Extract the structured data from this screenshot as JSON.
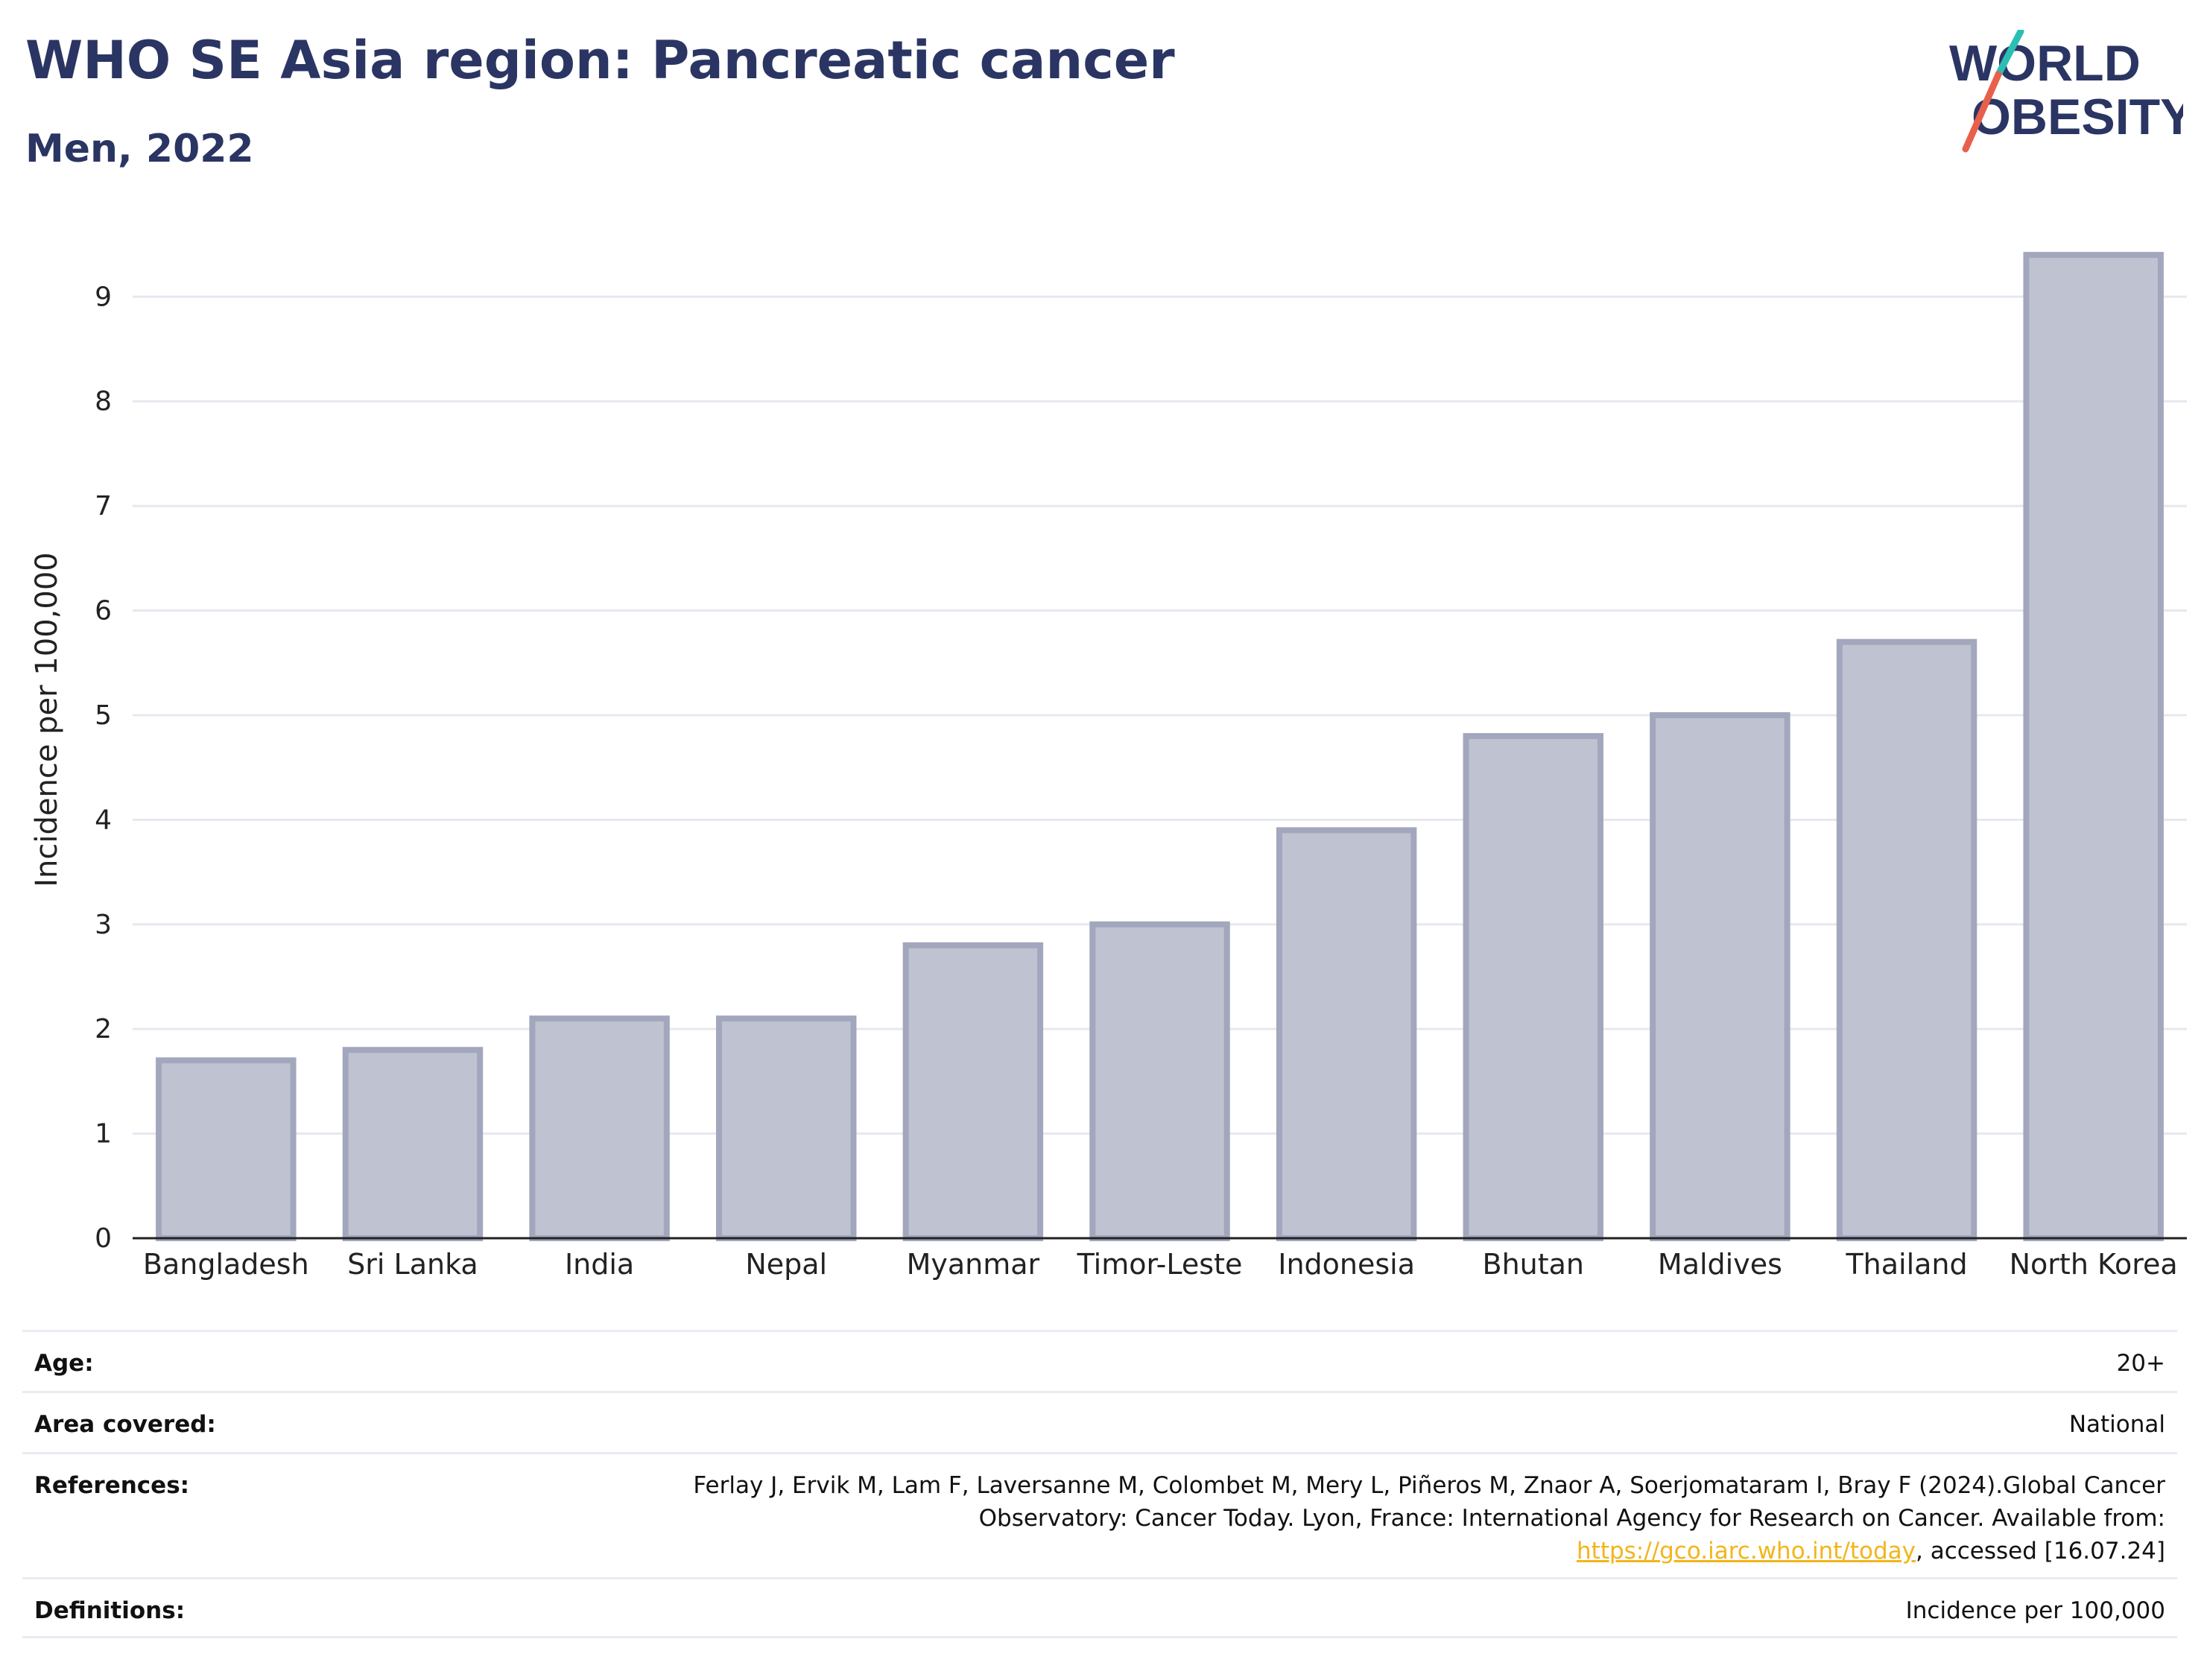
{
  "header": {
    "title": "WHO SE Asia region: Pancreatic cancer",
    "subtitle": "Men, 2022"
  },
  "logo": {
    "line1": "WORLD",
    "line2": "OBESITY",
    "icon": "world-obesity-logo",
    "colors": {
      "text": "#2b3563",
      "slash_teal": "#2bbfb3",
      "slash_red": "#e8604c"
    }
  },
  "chart_data": {
    "type": "bar",
    "categories": [
      "Bangladesh",
      "Sri Lanka",
      "India",
      "Nepal",
      "Myanmar",
      "Timor-Leste",
      "Indonesia",
      "Bhutan",
      "Maldives",
      "Thailand",
      "North Korea"
    ],
    "values": [
      1.7,
      1.8,
      2.1,
      2.1,
      2.8,
      3.0,
      3.9,
      4.8,
      5.0,
      5.7,
      9.4
    ],
    "ylabel": "Incidence per 100,000",
    "xlabel": "",
    "ylim": [
      0,
      9.7
    ],
    "yticks": [
      0,
      1,
      2,
      3,
      4,
      5,
      6,
      7,
      8,
      9
    ],
    "grid": true,
    "colors": {
      "bar_fill": "#bfc2d0",
      "bar_stroke": "#a2a7bd",
      "grid": "#e6e8ef",
      "axis": "#222222"
    }
  },
  "meta": [
    {
      "label": "Age:",
      "value": "20+"
    },
    {
      "label": "Area covered:",
      "value": "National"
    },
    {
      "label": "References:",
      "value_pre": "Ferlay J, Ervik M, Lam F, Laversanne M, Colombet M, Mery L, Piñeros M, Znaor A, Soerjomataram I, Bray F (2024).Global Cancer Observatory: Cancer Today. Lyon, France: International Agency for Research on Cancer. Available from: ",
      "link": "https://gco.iarc.who.int/today",
      "value_post": ", accessed [16.07.24]"
    },
    {
      "label": "Definitions:",
      "value": "Incidence per 100,000"
    }
  ]
}
